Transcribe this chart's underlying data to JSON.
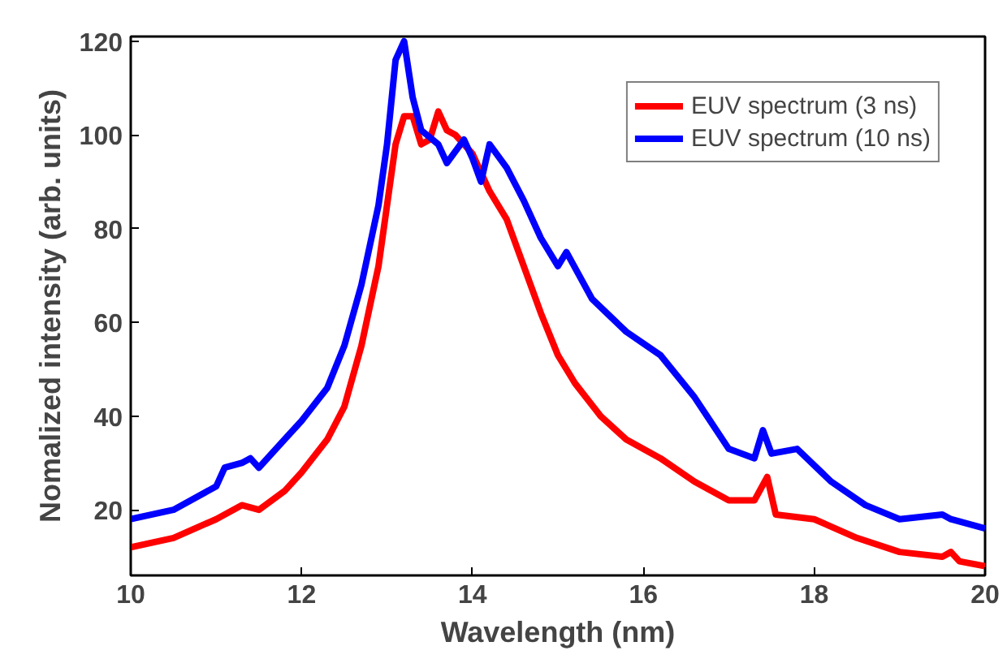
{
  "chart_data": {
    "type": "line",
    "xlabel": "Wavelength (nm)",
    "ylabel": "Nomalized intensity (arb. units)",
    "xlim": [
      10,
      20
    ],
    "ylim": [
      6,
      121
    ],
    "xticks": [
      10,
      12,
      14,
      16,
      18,
      20
    ],
    "yticks": [
      20,
      40,
      60,
      80,
      100,
      120
    ],
    "grid": false,
    "legend": "top right",
    "line_style": "solid",
    "marker": "none",
    "series": [
      {
        "name": "EUV spectrum (3 ns)",
        "color": "#ff0000",
        "x": [
          10,
          10.5,
          11,
          11.3,
          11.5,
          11.8,
          12,
          12.3,
          12.5,
          12.7,
          12.9,
          13.0,
          13.1,
          13.2,
          13.3,
          13.4,
          13.5,
          13.6,
          13.7,
          13.8,
          14.0,
          14.2,
          14.4,
          14.6,
          14.8,
          15.0,
          15.2,
          15.5,
          15.8,
          16.2,
          16.6,
          17.0,
          17.3,
          17.45,
          17.55,
          18,
          18.5,
          19,
          19.5,
          19.6,
          19.7,
          20
        ],
        "values": [
          12,
          14,
          18,
          21,
          20,
          24,
          28,
          35,
          42,
          55,
          72,
          85,
          98,
          104,
          104,
          98,
          99,
          105,
          101,
          100,
          96,
          88,
          82,
          72,
          62,
          53,
          47,
          40,
          35,
          31,
          26,
          22,
          22,
          27,
          19,
          18,
          14,
          11,
          10,
          11,
          9,
          8
        ]
      },
      {
        "name": "EUV spectrum (10 ns)",
        "color": "#0000ff",
        "x": [
          10,
          10.5,
          11,
          11.1,
          11.3,
          11.4,
          11.5,
          11.8,
          12,
          12.3,
          12.5,
          12.7,
          12.9,
          13.0,
          13.1,
          13.2,
          13.3,
          13.4,
          13.6,
          13.7,
          13.9,
          14.0,
          14.1,
          14.2,
          14.4,
          14.6,
          14.8,
          15.0,
          15.1,
          15.4,
          15.8,
          16.2,
          16.6,
          17.0,
          17.3,
          17.4,
          17.5,
          17.8,
          18.2,
          18.6,
          19.0,
          19.5,
          19.6,
          20
        ],
        "values": [
          18,
          20,
          25,
          29,
          30,
          31,
          29,
          35,
          39,
          46,
          55,
          68,
          85,
          98,
          116,
          120,
          108,
          101,
          98,
          94,
          99,
          95,
          90,
          98,
          93,
          86,
          78,
          72,
          75,
          65,
          58,
          53,
          44,
          33,
          31,
          37,
          32,
          33,
          26,
          21,
          18,
          19,
          18,
          16
        ]
      }
    ]
  }
}
